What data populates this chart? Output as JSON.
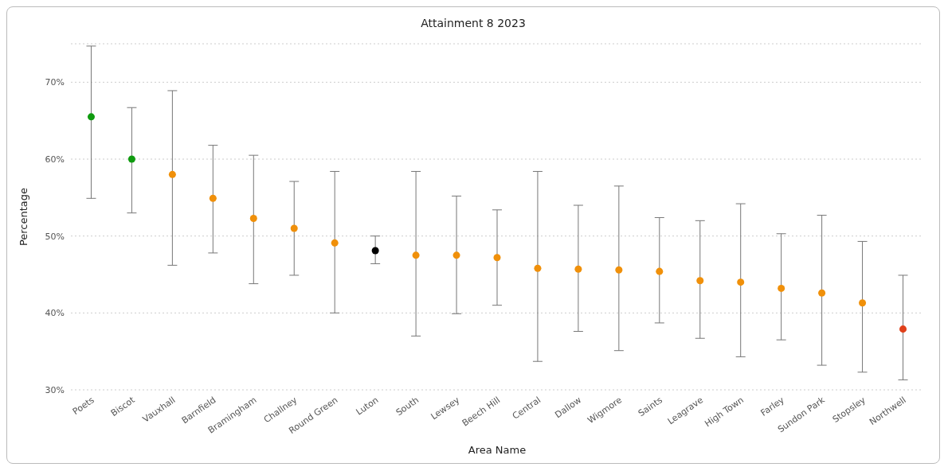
{
  "chart_data": {
    "type": "scatter",
    "title": "Attainment 8 2023",
    "xlabel": "Area Name",
    "ylabel": "Percentage",
    "categories": [
      "Poets",
      "Biscot",
      "Vauxhall",
      "Barnfield",
      "Bramingham",
      "Challney",
      "Round Green",
      "Luton",
      "South",
      "Lewsey",
      "Beech Hill",
      "Central",
      "Dallow",
      "Wigmore",
      "Saints",
      "Leagrave",
      "High Town",
      "Farley",
      "Sundon Park",
      "Stopsley",
      "Northwell"
    ],
    "values": [
      65.5,
      60.0,
      58.0,
      54.9,
      52.3,
      51.0,
      49.1,
      48.1,
      47.5,
      47.5,
      47.2,
      45.8,
      45.7,
      45.6,
      45.4,
      44.2,
      44.0,
      43.2,
      42.6,
      41.3,
      37.9
    ],
    "errors": [
      [
        54.9,
        74.7
      ],
      [
        53.0,
        66.7
      ],
      [
        46.2,
        68.9
      ],
      [
        47.8,
        61.8
      ],
      [
        43.8,
        60.5
      ],
      [
        44.9,
        57.1
      ],
      [
        40.0,
        58.4
      ],
      [
        46.4,
        50.0
      ],
      [
        37.0,
        58.4
      ],
      [
        39.9,
        55.2
      ],
      [
        41.0,
        53.4
      ],
      [
        33.7,
        58.4
      ],
      [
        37.6,
        54.0
      ],
      [
        35.1,
        56.5
      ],
      [
        38.7,
        52.4
      ],
      [
        36.7,
        52.0
      ],
      [
        34.3,
        54.2
      ],
      [
        36.5,
        50.3
      ],
      [
        33.2,
        52.7
      ],
      [
        32.3,
        49.3
      ],
      [
        31.3,
        44.9
      ]
    ],
    "colors": [
      "#0f9b0f",
      "#0f9b0f",
      "#f0900a",
      "#f0900a",
      "#f0900a",
      "#f0900a",
      "#f0900a",
      "#000000",
      "#f0900a",
      "#f0900a",
      "#f0900a",
      "#f0900a",
      "#f0900a",
      "#f0900a",
      "#f0900a",
      "#f0900a",
      "#f0900a",
      "#f0900a",
      "#f0900a",
      "#f0900a",
      "#e0401a"
    ],
    "ylim": [
      30,
      75
    ],
    "yticks": [
      {
        "value": 30,
        "label": "30%"
      },
      {
        "value": 40,
        "label": "40%"
      },
      {
        "value": 50,
        "label": "50%"
      },
      {
        "value": 60,
        "label": "60%"
      },
      {
        "value": 70,
        "label": "70%"
      }
    ],
    "grid": "y",
    "legend": false,
    "marker": "circle"
  }
}
